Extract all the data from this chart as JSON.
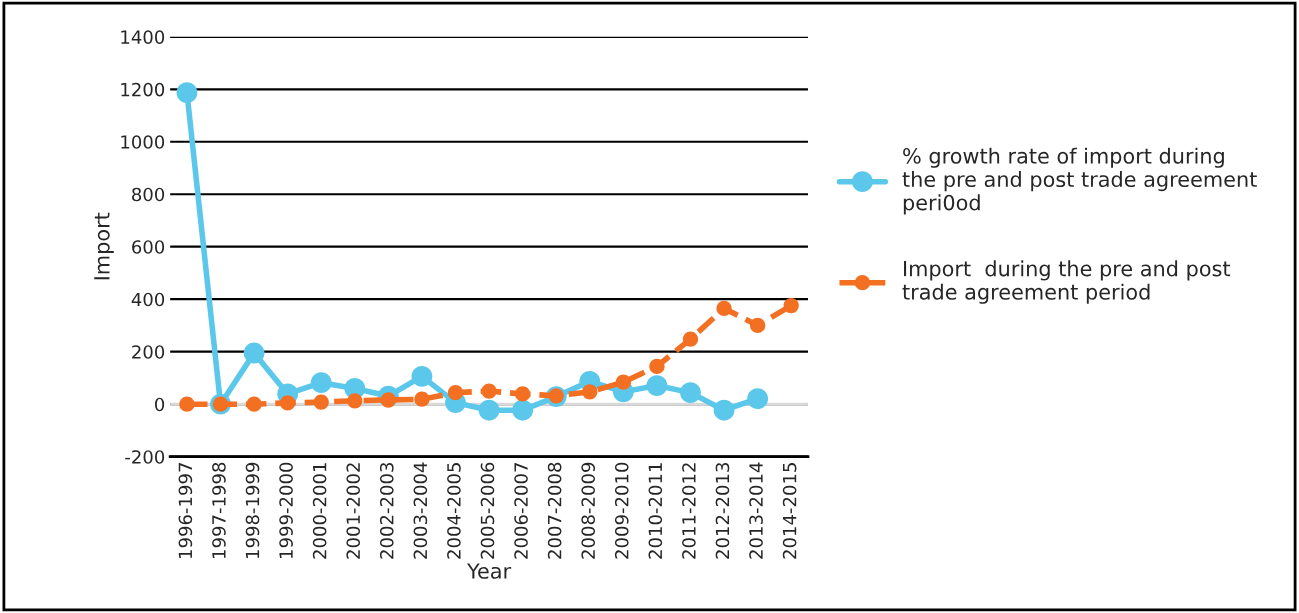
{
  "chart_data": {
    "type": "line",
    "xlabel": "Year",
    "ylabel": "Import",
    "categories": [
      "1996-1997",
      "1997-1998",
      "1998-1999",
      "1999-2000",
      "2000-2001",
      "2001-2002",
      "2002-2003",
      "2003-2004",
      "2004-2005",
      "2005-2006",
      "2006-2007",
      "2007-2008",
      "2008-2009",
      "2009-2010",
      "2010-2011",
      "2011-2012",
      "2012-2013",
      "2013-2014",
      "2014-2015"
    ],
    "series": [
      {
        "name": "% growth rate of import during the pre and post trade agreement peri0od",
        "color": "#5bc8eb",
        "line_style": "solid",
        "values": [
          1187,
          0,
          195,
          39,
          82,
          60,
          31,
          106,
          6,
          -23,
          -23,
          29,
          87,
          47,
          71,
          44,
          -23,
          21,
          null
        ]
      },
      {
        "name": "Import  during the pre and post trade agreement period",
        "color": "#f36f21",
        "line_style": "dashed",
        "values": [
          0,
          0,
          0,
          5,
          8,
          13,
          16,
          19,
          44,
          50,
          39,
          32,
          47,
          84,
          144,
          248,
          365,
          300,
          376
        ]
      }
    ],
    "ylim": [
      -200,
      1400
    ],
    "yticks": [
      -200,
      0,
      200,
      400,
      600,
      800,
      1000,
      1200,
      1400
    ],
    "grid": "y",
    "legend": "right",
    "marker": "circle"
  }
}
